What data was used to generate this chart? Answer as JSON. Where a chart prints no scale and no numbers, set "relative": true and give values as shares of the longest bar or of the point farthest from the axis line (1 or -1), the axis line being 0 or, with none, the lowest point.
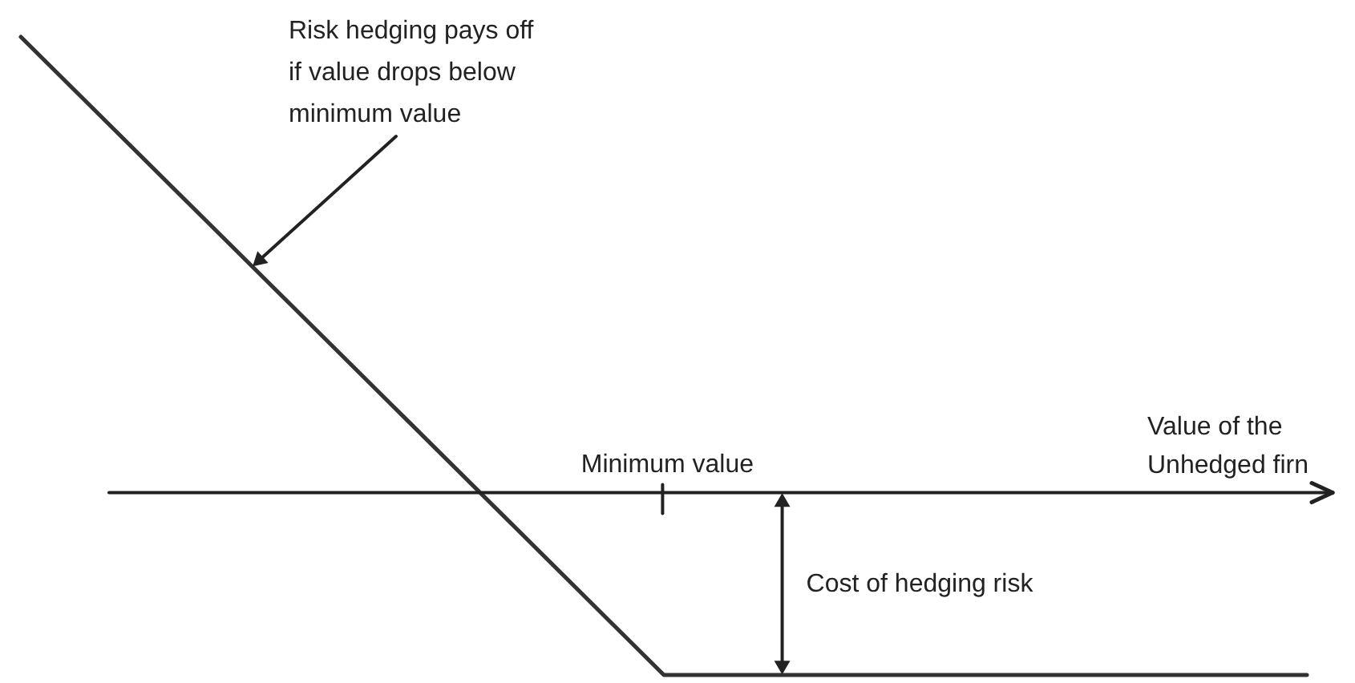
{
  "chart_data": {
    "type": "line",
    "relative": true,
    "categories": [
      null,
      null,
      null
    ],
    "values": [
      1,
      -0.4,
      -0.4
    ],
    "color": "#333333",
    "xlabel": "Value of the Unhedged firn",
    "annotations": [
      "Risk hedging pays off if value drops below minimum value",
      "Minimum value",
      "Cost of hedging risk"
    ]
  }
}
